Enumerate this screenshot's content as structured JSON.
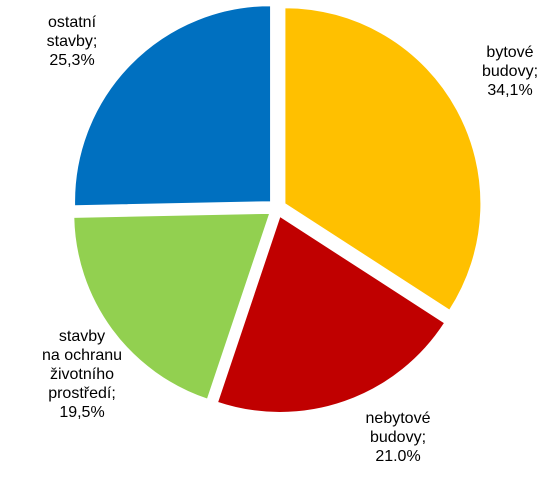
{
  "chart_data": {
    "type": "pie",
    "title": "",
    "exploded": true,
    "slices": [
      {
        "label_lines": [
          "bytové",
          "budovy;",
          "34,1%"
        ],
        "value": 34.1,
        "color": "#FFC000"
      },
      {
        "label_lines": [
          "nebytové",
          "budovy;",
          "21.0%"
        ],
        "value": 21.0,
        "color": "#C00000"
      },
      {
        "label_lines": [
          "stavby",
          "na ochranu",
          "životního",
          "prostředí;",
          "19,5%"
        ],
        "value": 19.5,
        "color": "#92D050"
      },
      {
        "label_lines": [
          "ostatní",
          "stavby;",
          "25,3%"
        ],
        "value": 25.3,
        "color": "#0070C0"
      }
    ]
  }
}
